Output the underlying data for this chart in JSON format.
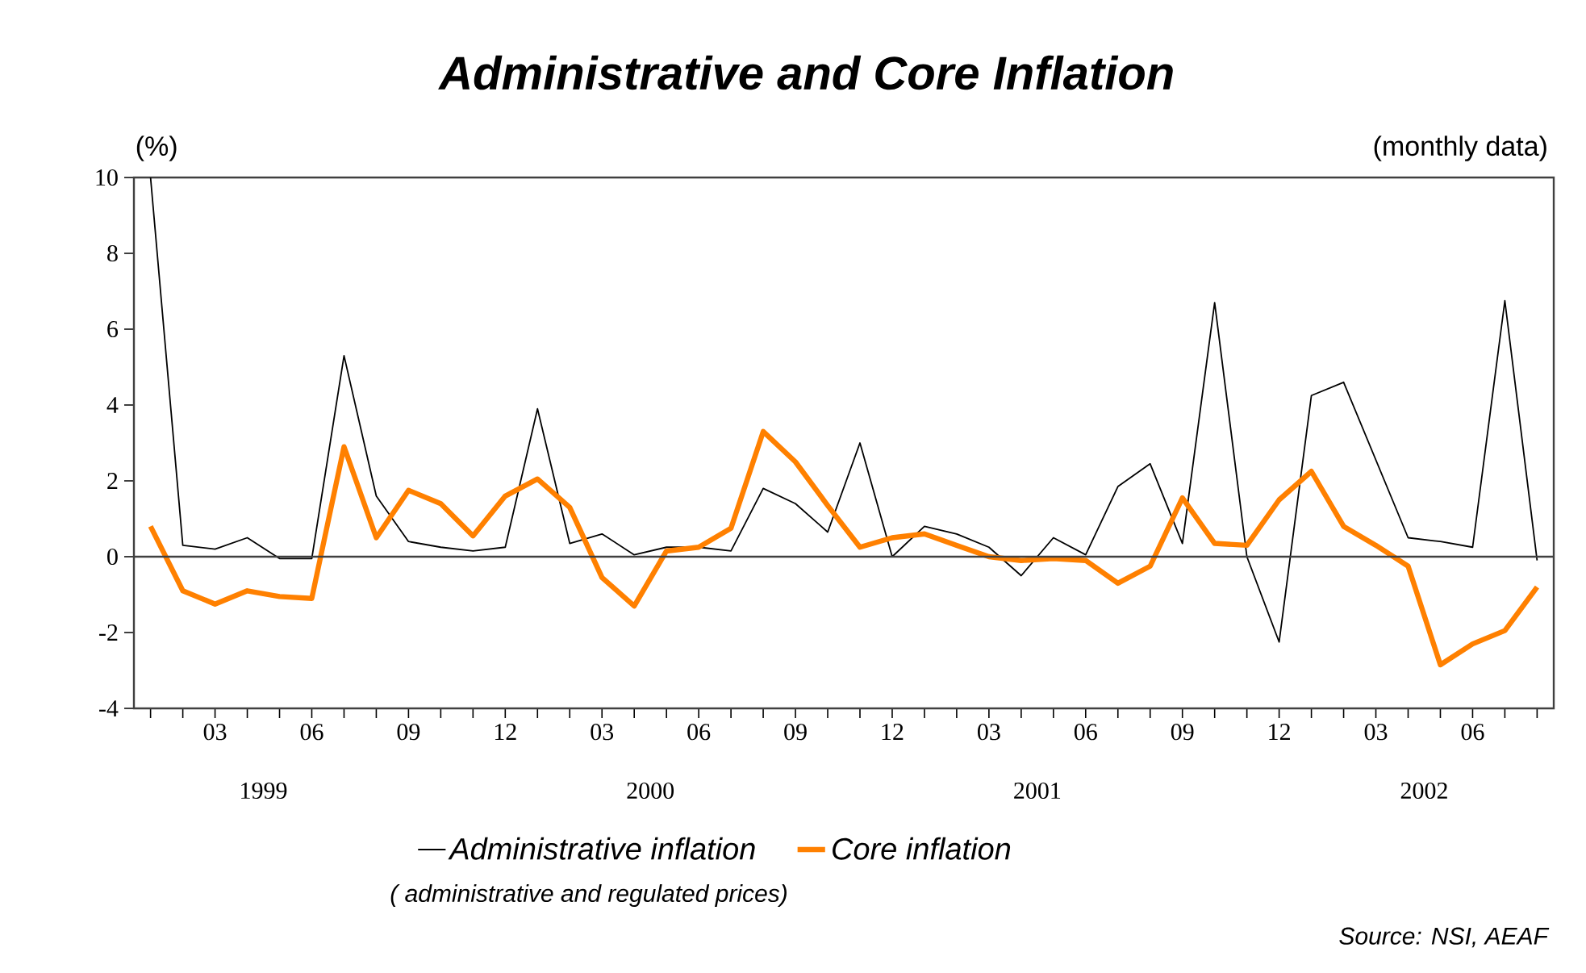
{
  "chart_data": {
    "type": "line",
    "title": "Administrative and Core Inflation",
    "subtitle": "(monthly data)",
    "ylabel": "(%)",
    "x": [
      "1999-01",
      "1999-02",
      "1999-03",
      "1999-04",
      "1999-05",
      "1999-06",
      "1999-07",
      "1999-08",
      "1999-09",
      "1999-10",
      "1999-11",
      "1999-12",
      "2000-01",
      "2000-02",
      "2000-03",
      "2000-04",
      "2000-05",
      "2000-06",
      "2000-07",
      "2000-08",
      "2000-09",
      "2000-10",
      "2000-11",
      "2000-12",
      "2001-01",
      "2001-02",
      "2001-03",
      "2001-04",
      "2001-05",
      "2001-06",
      "2001-07",
      "2001-08",
      "2001-09",
      "2001-10",
      "2001-11",
      "2001-12",
      "2002-01",
      "2002-02",
      "2002-03",
      "2002-04",
      "2002-05",
      "2002-06",
      "2002-07",
      "2002-08"
    ],
    "series": [
      {
        "name": "Administrative inflation",
        "color": "#000000",
        "values": [
          10,
          0.3,
          0.2,
          0.5,
          -0.05,
          -0.05,
          5.3,
          1.6,
          0.4,
          0.25,
          0.15,
          0.25,
          3.9,
          0.35,
          0.6,
          0.05,
          0.25,
          0.25,
          0.15,
          1.8,
          1.4,
          0.65,
          3.0,
          0.0,
          0.8,
          0.6,
          0.25,
          -0.5,
          0.5,
          0.05,
          1.85,
          2.45,
          0.35,
          6.7,
          0.0,
          -2.25,
          4.25,
          4.6,
          2.55,
          0.5,
          0.4,
          0.25,
          6.75,
          -0.1
        ]
      },
      {
        "name": "Core inflation",
        "color": "#ff8000",
        "values": [
          0.8,
          -0.9,
          -1.25,
          -0.9,
          -1.05,
          -1.1,
          2.9,
          0.5,
          1.75,
          1.4,
          0.55,
          1.6,
          2.05,
          1.3,
          -0.55,
          -1.3,
          0.15,
          0.25,
          0.75,
          3.3,
          2.5,
          1.35,
          0.25,
          0.5,
          0.6,
          0.3,
          0.0,
          -0.1,
          -0.05,
          -0.1,
          -0.7,
          -0.25,
          1.55,
          0.35,
          0.3,
          1.5,
          2.25,
          0.8,
          0.3,
          -0.25,
          -2.85,
          -2.3,
          -1.95,
          -0.8
        ]
      }
    ],
    "xlim": [
      "1998-12-16",
      "2002-08-17"
    ],
    "xticks": [
      {
        "value": "1999-01",
        "label": null
      },
      {
        "value": "1999-02",
        "label": null
      },
      {
        "value": "1999-03",
        "label": "03"
      },
      {
        "value": "1999-04",
        "label": null
      },
      {
        "value": "1999-05",
        "label": null
      },
      {
        "value": "1999-06",
        "label": "06"
      },
      {
        "value": "1999-07",
        "label": null
      },
      {
        "value": "1999-08",
        "label": null
      },
      {
        "value": "1999-09",
        "label": "09"
      },
      {
        "value": "1999-10",
        "label": null
      },
      {
        "value": "1999-11",
        "label": null
      },
      {
        "value": "1999-12",
        "label": "12"
      },
      {
        "value": "2000-01",
        "label": null
      },
      {
        "value": "2000-02",
        "label": null
      },
      {
        "value": "2000-03",
        "label": "03"
      },
      {
        "value": "2000-04",
        "label": null
      },
      {
        "value": "2000-05",
        "label": null
      },
      {
        "value": "2000-06",
        "label": "06"
      },
      {
        "value": "2000-07",
        "label": null
      },
      {
        "value": "2000-08",
        "label": null
      },
      {
        "value": "2000-09",
        "label": "09"
      },
      {
        "value": "2000-10",
        "label": null
      },
      {
        "value": "2000-11",
        "label": null
      },
      {
        "value": "2000-12",
        "label": "12"
      },
      {
        "value": "2001-01",
        "label": null
      },
      {
        "value": "2001-02",
        "label": null
      },
      {
        "value": "2001-03",
        "label": "03"
      },
      {
        "value": "2001-04",
        "label": null
      },
      {
        "value": "2001-05",
        "label": null
      },
      {
        "value": "2001-06",
        "label": "06"
      },
      {
        "value": "2001-07",
        "label": null
      },
      {
        "value": "2001-08",
        "label": null
      },
      {
        "value": "2001-09",
        "label": "09"
      },
      {
        "value": "2001-10",
        "label": null
      },
      {
        "value": "2001-11",
        "label": null
      },
      {
        "value": "2001-12",
        "label": "12"
      },
      {
        "value": "2002-01",
        "label": null
      },
      {
        "value": "2002-02",
        "label": null
      },
      {
        "value": "2002-03",
        "label": "03"
      },
      {
        "value": "2002-04",
        "label": null
      },
      {
        "value": "2002-05",
        "label": null
      },
      {
        "value": "2002-06",
        "label": "06"
      },
      {
        "value": "2002-07",
        "label": null
      },
      {
        "value": "2002-08",
        "label": null
      }
    ],
    "ylim": [
      -4,
      10
    ],
    "yticks": [
      -4,
      -2,
      0,
      2,
      4,
      6,
      8,
      10
    ],
    "ref_lines": [
      {
        "axis": "y",
        "value": 0,
        "color": "#404040"
      }
    ],
    "legend": "bottom",
    "annotations": [
      "1999",
      "2000",
      "2001",
      "2002",
      "( administrative and regulated prices)",
      "Source: NSI, AEAF"
    ]
  }
}
